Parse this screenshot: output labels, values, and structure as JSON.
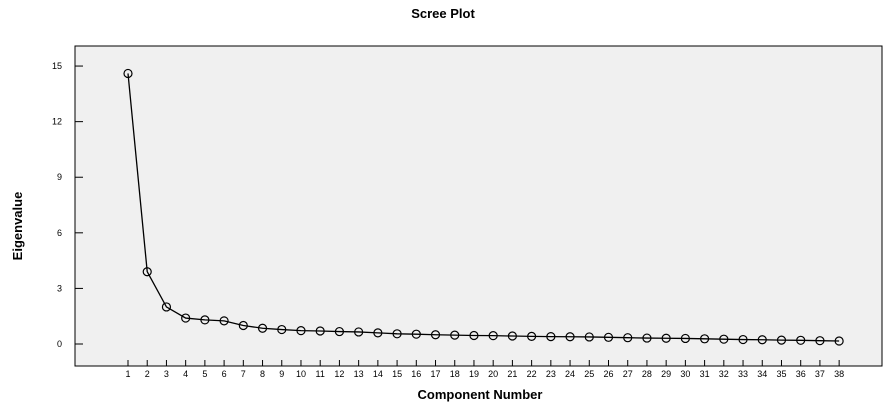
{
  "chart_data": {
    "type": "line",
    "title": "Scree Plot",
    "xlabel": "Component Number",
    "ylabel": "Eigenvalue",
    "ylim": [
      0,
      15.7
    ],
    "yticks": [
      "0",
      "3",
      "6",
      "9",
      "12",
      "15"
    ],
    "x": [
      1,
      2,
      3,
      4,
      5,
      6,
      7,
      8,
      9,
      10,
      11,
      12,
      13,
      14,
      15,
      16,
      17,
      18,
      19,
      20,
      21,
      22,
      23,
      24,
      25,
      26,
      27,
      28,
      29,
      30,
      31,
      32,
      33,
      34,
      35,
      36,
      37,
      38
    ],
    "series": [
      {
        "values": [
          14.6,
          3.9,
          2.0,
          1.4,
          1.3,
          1.25,
          1.0,
          0.85,
          0.78,
          0.72,
          0.7,
          0.67,
          0.65,
          0.6,
          0.55,
          0.53,
          0.5,
          0.48,
          0.46,
          0.45,
          0.43,
          0.41,
          0.4,
          0.39,
          0.38,
          0.36,
          0.34,
          0.32,
          0.31,
          0.3,
          0.28,
          0.26,
          0.24,
          0.23,
          0.21,
          0.2,
          0.18,
          0.16
        ]
      }
    ],
    "grid": false,
    "plot_background": "#f0f0f0",
    "line_color": "#000000",
    "marker": "open-circle"
  }
}
